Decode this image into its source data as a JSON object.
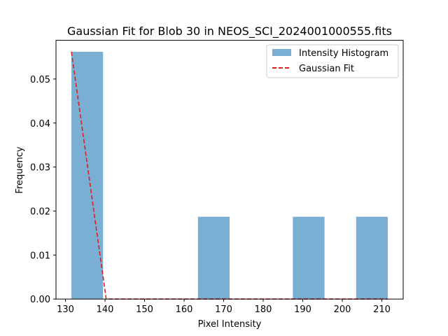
{
  "chart_data": {
    "type": "bar",
    "title": "Gaussian Fit for Blob 30 in NEOS_SCI_2024001000555.fits",
    "xlabel": "Pixel Intensity",
    "ylabel": "Frequency",
    "xlim": [
      127.6,
      215.4
    ],
    "ylim": [
      0,
      0.0588
    ],
    "xticks": [
      130,
      140,
      150,
      160,
      170,
      180,
      190,
      200,
      210
    ],
    "yticks": [
      0.0,
      0.01,
      0.02,
      0.03,
      0.04,
      0.05
    ],
    "ytick_labels": [
      "0.00",
      "0.01",
      "0.02",
      "0.03",
      "0.04",
      "0.05"
    ],
    "grid": false,
    "legend_position": "top-right",
    "series": [
      {
        "name": "Intensity Histogram",
        "kind": "histogram",
        "color": "#7aafd3",
        "bins": [
          {
            "x0": 131.5,
            "x1": 139.5,
            "value": 0.0562
          },
          {
            "x0": 139.5,
            "x1": 147.5,
            "value": 0
          },
          {
            "x0": 147.5,
            "x1": 155.5,
            "value": 0
          },
          {
            "x0": 155.5,
            "x1": 163.5,
            "value": 0
          },
          {
            "x0": 163.5,
            "x1": 171.5,
            "value": 0.0187
          },
          {
            "x0": 171.5,
            "x1": 179.5,
            "value": 0
          },
          {
            "x0": 179.5,
            "x1": 187.5,
            "value": 0
          },
          {
            "x0": 187.5,
            "x1": 195.5,
            "value": 0.0187
          },
          {
            "x0": 195.5,
            "x1": 203.5,
            "value": 0
          },
          {
            "x0": 203.5,
            "x1": 211.5,
            "value": 0.0187
          }
        ]
      },
      {
        "name": "Gaussian Fit",
        "kind": "line",
        "color": "#e41a1c",
        "dash": "dashed",
        "points": [
          [
            131.5,
            0.0562
          ],
          [
            140.3,
            0.0
          ],
          [
            211.5,
            0.0
          ]
        ]
      }
    ]
  }
}
